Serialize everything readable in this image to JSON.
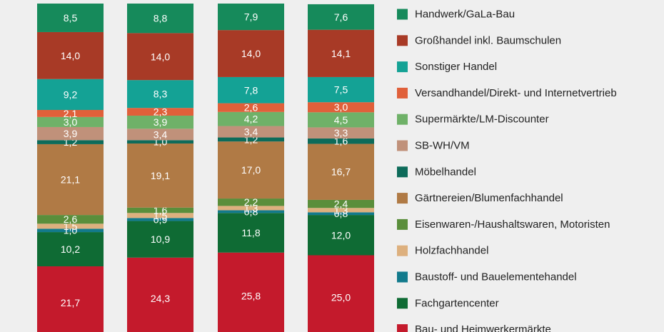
{
  "chart_data": {
    "type": "bar",
    "stacked": true,
    "categories": [
      "",
      "",
      "",
      ""
    ],
    "series": [
      {
        "name": "Bau- und Heimwerkermärkte",
        "color": "#c41a2c",
        "values": [
          21.7,
          24.3,
          25.8,
          25.0
        ],
        "labels": [
          "21,7",
          "24,3",
          "25,8",
          "25,0"
        ]
      },
      {
        "name": "Fachgartencenter",
        "color": "#0f6b34",
        "values": [
          10.2,
          10.9,
          11.8,
          12.0
        ],
        "labels": [
          "10,2",
          "10,9",
          "11,8",
          "12,0"
        ]
      },
      {
        "name": "Baustoff- und Bauelementehandel",
        "color": "#127a8c",
        "values": [
          1.0,
          0.9,
          0.8,
          0.8
        ],
        "labels": [
          "1,0",
          "0,9",
          "0,8",
          "0,8"
        ]
      },
      {
        "name": "Holzfachhandel",
        "color": "#ddb07e",
        "values": [
          1.5,
          1.5,
          1.3,
          1.3
        ],
        "labels": [
          "1,5",
          "1,5",
          "1,3",
          "1,3"
        ]
      },
      {
        "name": "Eisenwaren-/Haushaltswaren, Motoristen",
        "color": "#5a8e3b",
        "values": [
          2.6,
          1.6,
          2.2,
          2.4
        ],
        "labels": [
          "2,6",
          "1,6",
          "2,2",
          "2,4"
        ]
      },
      {
        "name": "Gärtnereien/Blumenfachhandel",
        "color": "#b07a45",
        "values": [
          21.1,
          19.1,
          17.0,
          16.7
        ],
        "labels": [
          "21,1",
          "19,1",
          "17,0",
          "16,7"
        ]
      },
      {
        "name": "Möbelhandel",
        "color": "#0d6b5a",
        "values": [
          1.2,
          1.0,
          1.2,
          1.6
        ],
        "labels": [
          "1,2",
          "1,0",
          "1,2",
          "1,6"
        ]
      },
      {
        "name": "SB-WH/VM",
        "color": "#c0917a",
        "values": [
          3.9,
          3.4,
          3.4,
          3.3
        ],
        "labels": [
          "3,9",
          "3,4",
          "3,4",
          "3,3"
        ]
      },
      {
        "name": "Supermärkte/LM-Discounter",
        "color": "#6fb168",
        "values": [
          3.0,
          3.9,
          4.2,
          4.5
        ],
        "labels": [
          "3,0",
          "3,9",
          "4,2",
          "4,5"
        ]
      },
      {
        "name": "Versandhandel/Direkt- und Internetvertrieb",
        "color": "#e0603a",
        "values": [
          2.1,
          2.3,
          2.6,
          3.0
        ],
        "labels": [
          "2,1",
          "2,3",
          "2,6",
          "3,0"
        ]
      },
      {
        "name": "Sonstiger Handel",
        "color": "#14a295",
        "values": [
          9.2,
          8.3,
          7.8,
          7.5
        ],
        "labels": [
          "9,2",
          "8,3",
          "7,8",
          "7,5"
        ]
      },
      {
        "name": "Großhandel inkl. Baumschulen",
        "color": "#a83a26",
        "values": [
          14.0,
          14.0,
          14.0,
          14.1
        ],
        "labels": [
          "14,0",
          "14,0",
          "14,0",
          "14,1"
        ]
      },
      {
        "name": "Handwerk/GaLa-Bau",
        "color": "#168a5b",
        "values": [
          8.5,
          8.8,
          7.9,
          7.6
        ],
        "labels": [
          "8,5",
          "8,8",
          "7,9",
          "7,6"
        ]
      }
    ],
    "legend": [
      "Handwerk/GaLa-Bau",
      "Großhandel inkl. Baumschulen",
      "Sonstiger Handel",
      "Versandhandel/Direkt- und Internetvertrieb",
      "Supermärkte/LM-Discounter",
      "SB-WH/VM",
      "Möbelhandel",
      "Gärtnereien/Blumenfachhandel",
      "Eisenwaren-/Haushaltswaren, Motoristen",
      "Holzfachhandel",
      "Baustoff- und Bauelementehandel",
      "Fachgartencenter",
      "Bau- und Heimwerkermärkte"
    ],
    "ylim": [
      0,
      100
    ],
    "legend_position": "right"
  }
}
